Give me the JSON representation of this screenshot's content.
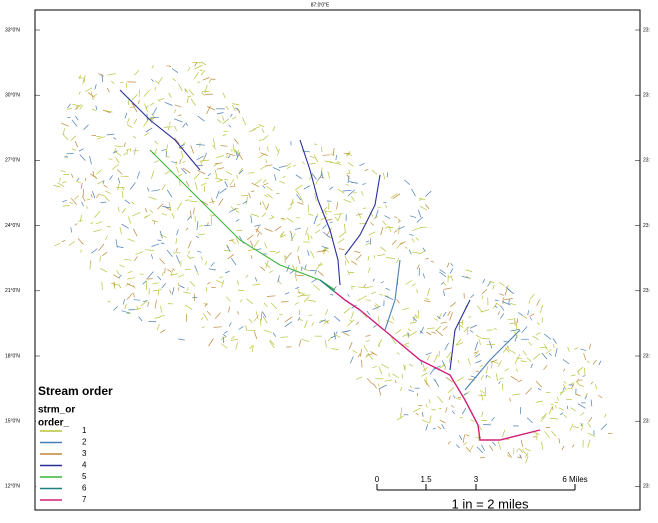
{
  "map": {
    "top_label": "87:0'0\"E",
    "lat_labels": [
      "33°0'N",
      "30°0'N",
      "27°0'N",
      "24°0'N",
      "21°0'N",
      "18°0'N",
      "15°0'N",
      "12°0'N"
    ],
    "right_labels": [
      "23:",
      "23:",
      "23:",
      "23:",
      "23:",
      "23:",
      "23:",
      "23:"
    ],
    "legend": {
      "title": "Stream order",
      "field": "strm_or",
      "subfield": "order_",
      "items": [
        {
          "label": "1",
          "color": "#b8c43c"
        },
        {
          "label": "2",
          "color": "#4a7fb5"
        },
        {
          "label": "3",
          "color": "#c0873a"
        },
        {
          "label": "4",
          "color": "#2a2f9a"
        },
        {
          "label": "5",
          "color": "#3cb43c"
        },
        {
          "label": "6",
          "color": "#1e7f7f"
        },
        {
          "label": "7",
          "color": "#d0207a"
        }
      ]
    },
    "scale_bar": {
      "labels": [
        "0",
        "1.5",
        "3",
        "6 Miles"
      ],
      "caption": "1 in = 2 miles"
    }
  }
}
